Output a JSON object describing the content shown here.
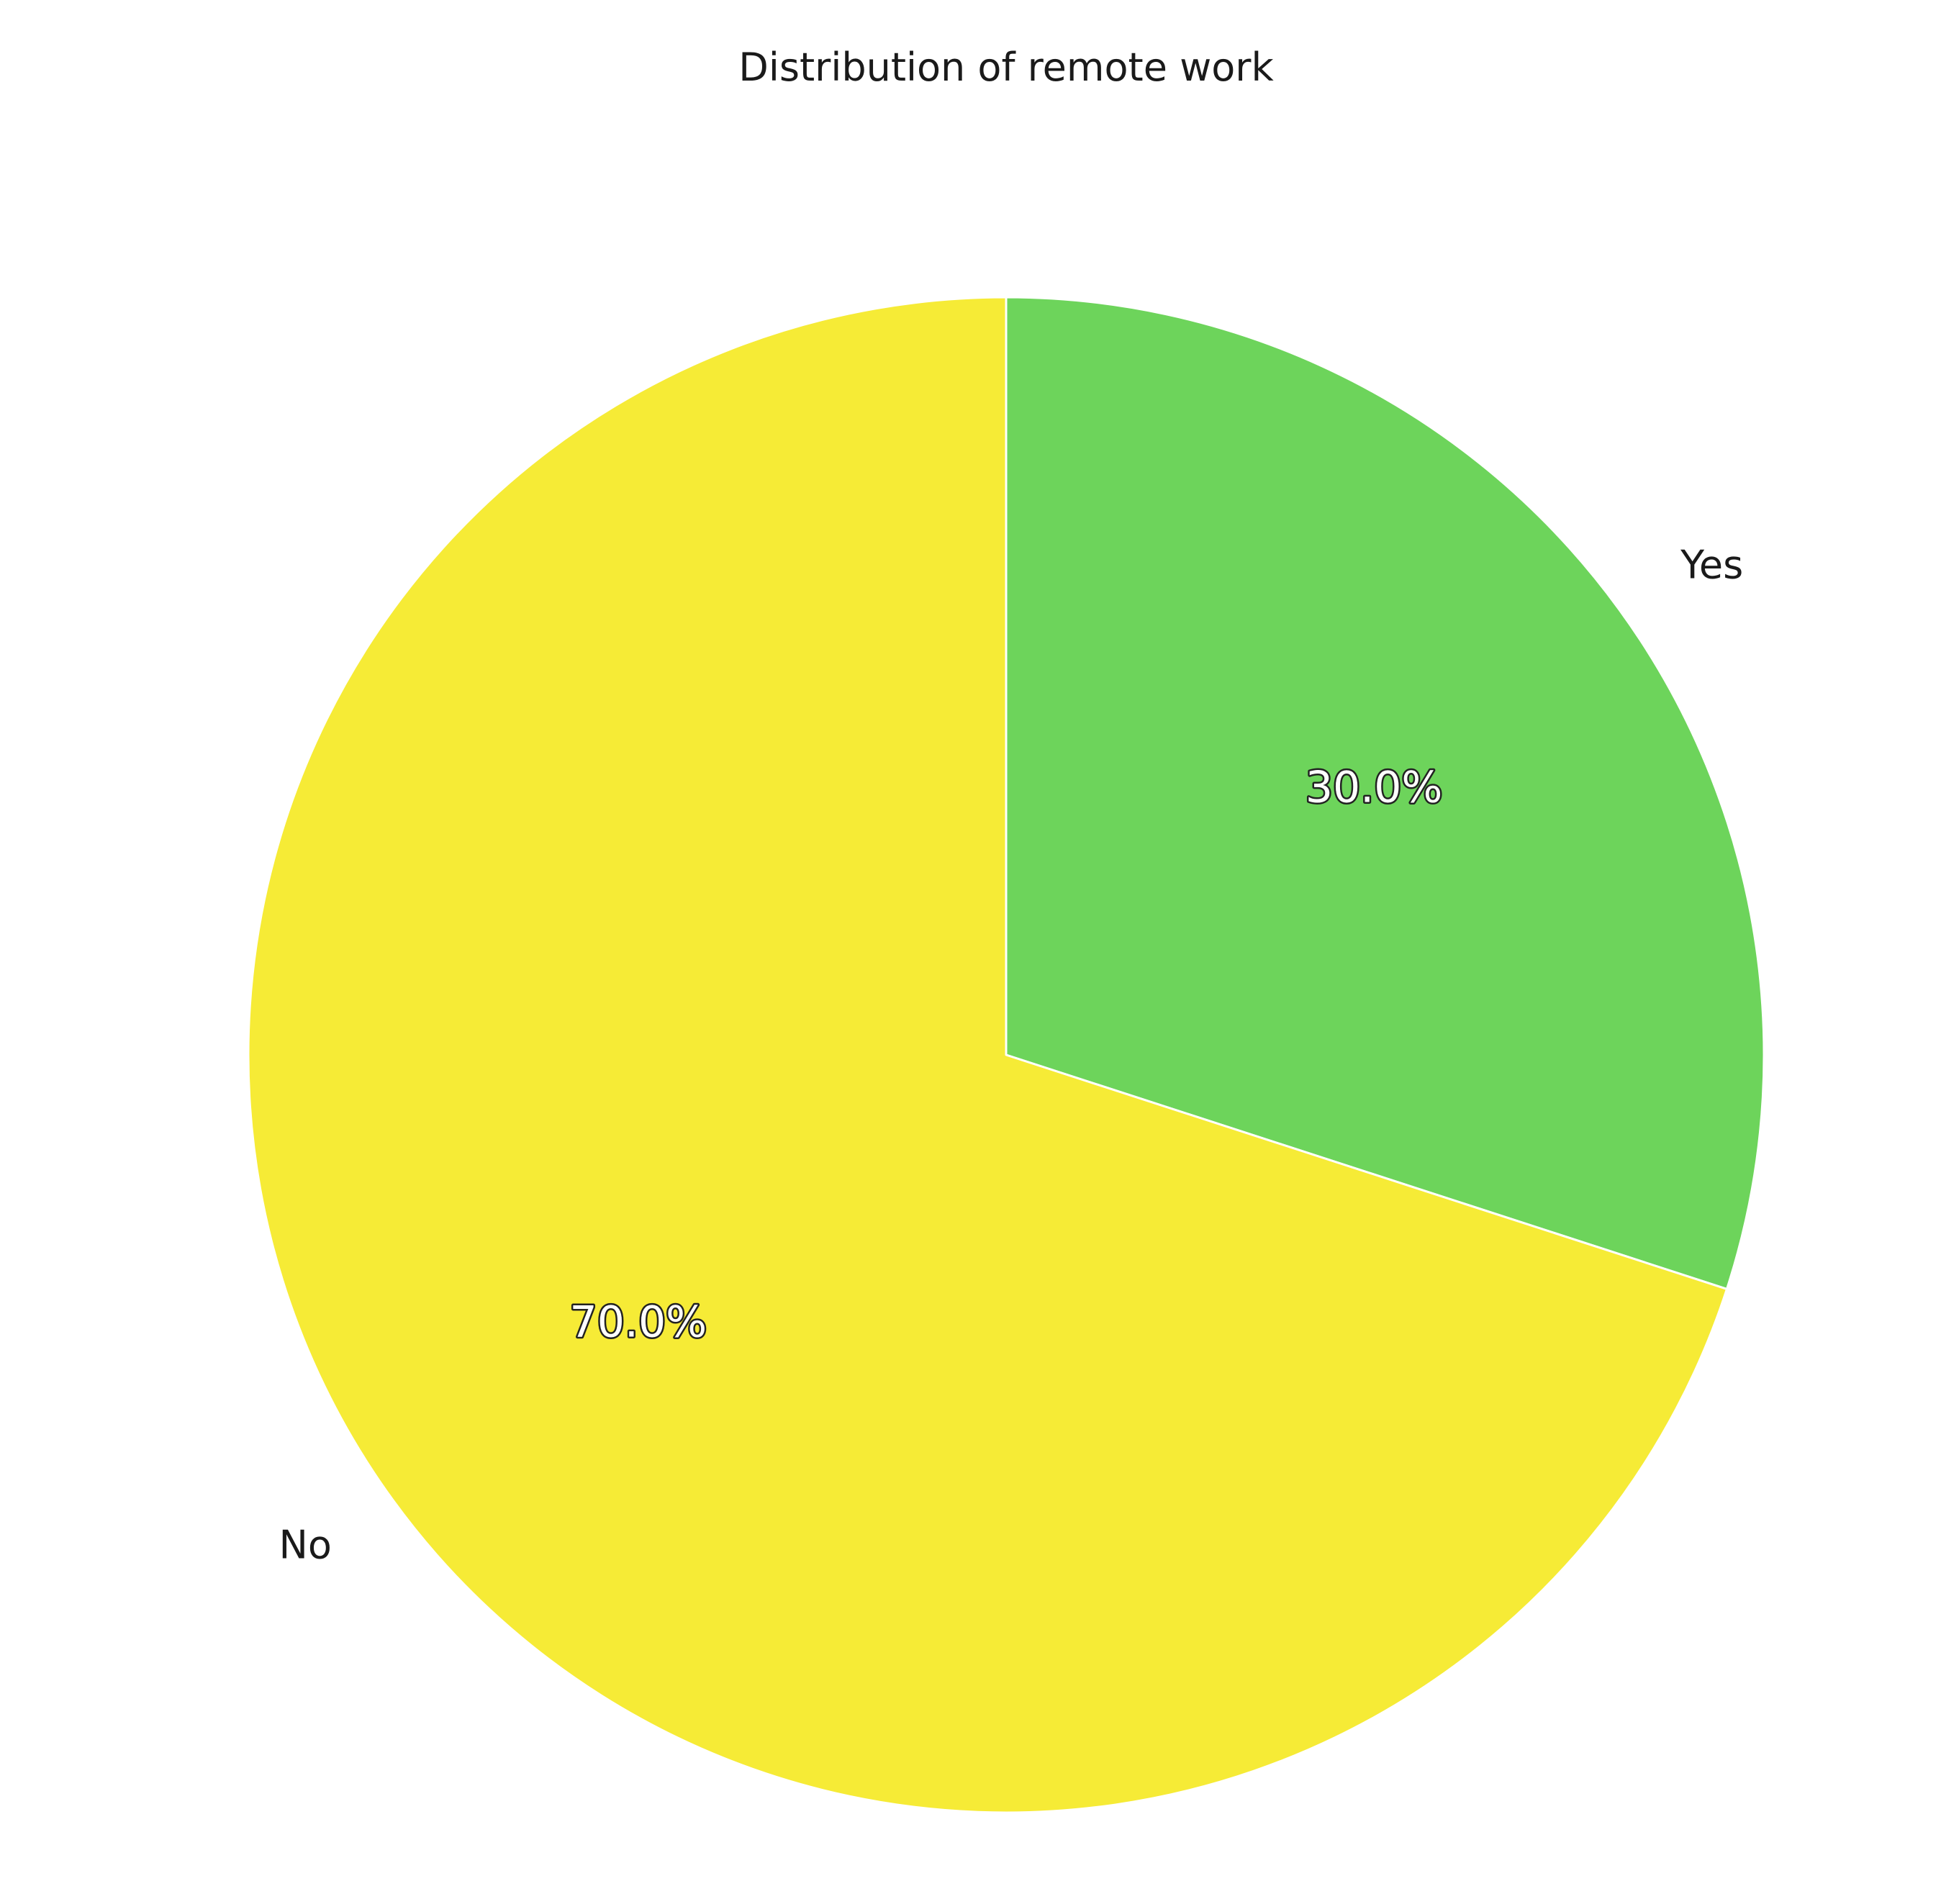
{
  "chart_data": {
    "type": "pie",
    "title": "Distribution of remote work",
    "start_angle_deg": 90,
    "direction": "clockwise",
    "slice_edge_color": "#ffffff",
    "slices": [
      {
        "label": "Yes",
        "value": 30.0,
        "pct_label": "30.0%",
        "color": "#6dd45b"
      },
      {
        "label": "No",
        "value": 70.0,
        "pct_label": "70.0%",
        "color": "#f6eb36"
      }
    ]
  }
}
